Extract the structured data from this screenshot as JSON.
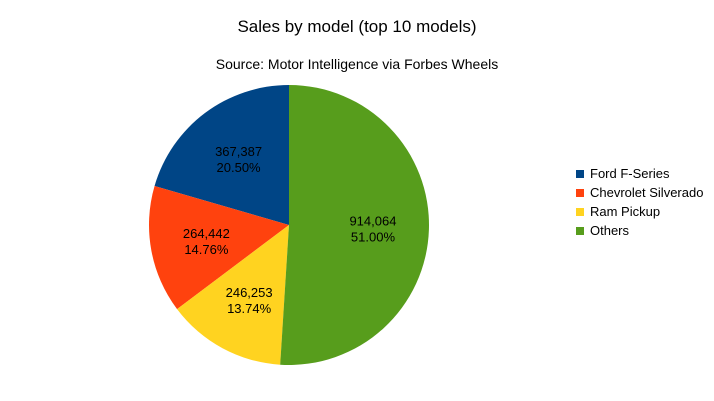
{
  "chart_data": {
    "type": "pie",
    "title": "Sales by model (top 10 models)",
    "subtitle": "Source: Motor Intelligence via Forbes Wheels",
    "legend_position": "right",
    "slices": [
      {
        "name": "Ford F-Series",
        "value": 367387,
        "value_label": "367,387",
        "percent_label": "20.50%",
        "color": "#004586"
      },
      {
        "name": "Chevrolet Silverado",
        "value": 264442,
        "value_label": "264,442",
        "percent_label": "14.76%",
        "color": "#ff420e"
      },
      {
        "name": "Ram Pickup",
        "value": 246253,
        "value_label": "246,253",
        "percent_label": "13.74%",
        "color": "#ffd320"
      },
      {
        "name": "Others",
        "value": 914064,
        "value_label": "914,064",
        "percent_label": "51.00%",
        "color": "#579d1c"
      }
    ]
  }
}
